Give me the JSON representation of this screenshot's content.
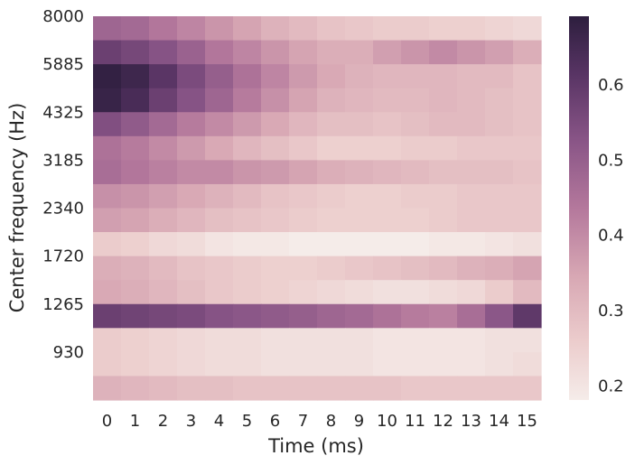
{
  "chart_data": {
    "type": "heatmap",
    "xlabel": "Time (ms)",
    "ylabel": "Center frequency (Hz)",
    "x_ticks": [
      "0",
      "1",
      "2",
      "3",
      "4",
      "5",
      "6",
      "7",
      "8",
      "9",
      "10",
      "11",
      "12",
      "13",
      "14",
      "15"
    ],
    "y_tick_labels": [
      "8000",
      "5885",
      "4325",
      "3185",
      "2340",
      "1720",
      "1265",
      "930"
    ],
    "colorbar": {
      "range": [
        0.18,
        0.69
      ],
      "ticks": [
        "0.2",
        "0.3",
        "0.4",
        "0.5",
        "0.6"
      ],
      "tick_values": [
        0.2,
        0.3,
        0.4,
        0.5,
        0.6
      ],
      "palette": "light-pink to dark purple (cubehelix)"
    },
    "values": [
      [
        0.48,
        0.47,
        0.44,
        0.41,
        0.38,
        0.35,
        0.32,
        0.3,
        0.28,
        0.27,
        0.26,
        0.26,
        0.25,
        0.25,
        0.24,
        0.23
      ],
      [
        0.58,
        0.56,
        0.53,
        0.49,
        0.44,
        0.41,
        0.38,
        0.35,
        0.33,
        0.33,
        0.36,
        0.38,
        0.4,
        0.38,
        0.36,
        0.33
      ],
      [
        0.68,
        0.66,
        0.61,
        0.55,
        0.5,
        0.45,
        0.41,
        0.37,
        0.34,
        0.32,
        0.31,
        0.31,
        0.31,
        0.3,
        0.3,
        0.28
      ],
      [
        0.67,
        0.64,
        0.58,
        0.53,
        0.48,
        0.43,
        0.39,
        0.35,
        0.32,
        0.31,
        0.3,
        0.3,
        0.31,
        0.3,
        0.29,
        0.28
      ],
      [
        0.54,
        0.51,
        0.47,
        0.43,
        0.4,
        0.37,
        0.34,
        0.31,
        0.29,
        0.29,
        0.28,
        0.29,
        0.3,
        0.3,
        0.29,
        0.28
      ],
      [
        0.45,
        0.43,
        0.4,
        0.37,
        0.34,
        0.31,
        0.29,
        0.27,
        0.25,
        0.25,
        0.25,
        0.26,
        0.26,
        0.27,
        0.27,
        0.27
      ],
      [
        0.46,
        0.44,
        0.42,
        0.4,
        0.4,
        0.38,
        0.37,
        0.35,
        0.33,
        0.32,
        0.31,
        0.3,
        0.29,
        0.29,
        0.29,
        0.28
      ],
      [
        0.39,
        0.38,
        0.36,
        0.34,
        0.32,
        0.3,
        0.28,
        0.27,
        0.26,
        0.25,
        0.25,
        0.26,
        0.26,
        0.27,
        0.27,
        0.27
      ],
      [
        0.36,
        0.35,
        0.33,
        0.31,
        0.29,
        0.28,
        0.27,
        0.26,
        0.25,
        0.25,
        0.25,
        0.25,
        0.26,
        0.27,
        0.27,
        0.27
      ],
      [
        0.26,
        0.25,
        0.23,
        0.22,
        0.2,
        0.19,
        0.19,
        0.18,
        0.18,
        0.18,
        0.18,
        0.18,
        0.19,
        0.19,
        0.2,
        0.21
      ],
      [
        0.33,
        0.32,
        0.3,
        0.28,
        0.27,
        0.26,
        0.25,
        0.25,
        0.26,
        0.27,
        0.28,
        0.29,
        0.3,
        0.32,
        0.33,
        0.35
      ],
      [
        0.34,
        0.33,
        0.31,
        0.29,
        0.27,
        0.26,
        0.25,
        0.24,
        0.23,
        0.22,
        0.21,
        0.21,
        0.22,
        0.23,
        0.26,
        0.3
      ],
      [
        0.58,
        0.57,
        0.56,
        0.55,
        0.53,
        0.52,
        0.51,
        0.5,
        0.48,
        0.47,
        0.45,
        0.43,
        0.42,
        0.46,
        0.52,
        0.6
      ],
      [
        0.26,
        0.25,
        0.24,
        0.23,
        0.22,
        0.22,
        0.21,
        0.21,
        0.21,
        0.21,
        0.2,
        0.2,
        0.2,
        0.2,
        0.21,
        0.21
      ],
      [
        0.26,
        0.25,
        0.24,
        0.23,
        0.22,
        0.22,
        0.21,
        0.21,
        0.21,
        0.21,
        0.2,
        0.2,
        0.2,
        0.2,
        0.21,
        0.22
      ],
      [
        0.32,
        0.31,
        0.3,
        0.29,
        0.29,
        0.28,
        0.28,
        0.28,
        0.28,
        0.28,
        0.28,
        0.27,
        0.27,
        0.27,
        0.27,
        0.27
      ]
    ]
  }
}
